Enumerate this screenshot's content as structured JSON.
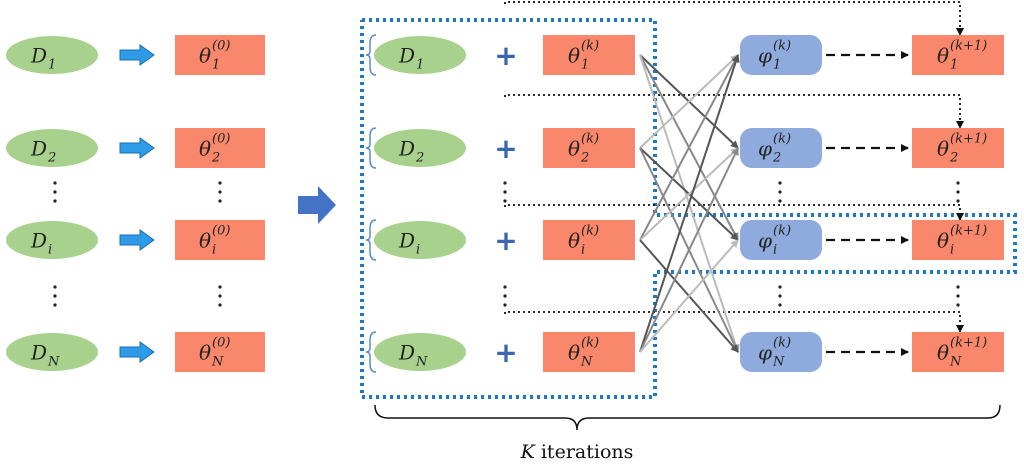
{
  "left": {
    "data": [
      {
        "base": "D",
        "sub": "1"
      },
      {
        "base": "D",
        "sub": "2"
      },
      {
        "base": "D",
        "sub": "i"
      },
      {
        "base": "D",
        "sub": "N"
      }
    ],
    "params": [
      {
        "base": "θ",
        "sub": "1",
        "sup": "(0)"
      },
      {
        "base": "θ",
        "sub": "2",
        "sup": "(0)"
      },
      {
        "base": "θ",
        "sub": "i",
        "sup": "(0)"
      },
      {
        "base": "θ",
        "sub": "N",
        "sup": "(0)"
      }
    ]
  },
  "right": {
    "data": [
      {
        "base": "D",
        "sub": "1"
      },
      {
        "base": "D",
        "sub": "2"
      },
      {
        "base": "D",
        "sub": "i"
      },
      {
        "base": "D",
        "sub": "N"
      }
    ],
    "operator": "+",
    "params": [
      {
        "base": "θ",
        "sub": "1",
        "sup": "(k)"
      },
      {
        "base": "θ",
        "sub": "2",
        "sup": "(k)"
      },
      {
        "base": "θ",
        "sub": "i",
        "sup": "(k)"
      },
      {
        "base": "θ",
        "sub": "N",
        "sup": "(k)"
      }
    ],
    "aggregates": [
      {
        "base": "φ",
        "sub": "1",
        "sup": "(k)"
      },
      {
        "base": "φ",
        "sub": "2",
        "sup": "(k)"
      },
      {
        "base": "φ",
        "sub": "i",
        "sup": "(k)"
      },
      {
        "base": "φ",
        "sub": "N",
        "sup": "(k)"
      }
    ],
    "updates": [
      {
        "base": "θ",
        "sub": "1",
        "sup": "(k+1)"
      },
      {
        "base": "θ",
        "sub": "2",
        "sup": "(k+1)"
      },
      {
        "base": "θ",
        "sub": "i",
        "sup": "(k+1)"
      },
      {
        "base": "θ",
        "sub": "N",
        "sup": "(k+1)"
      }
    ]
  },
  "caption": {
    "variable": "K",
    "text": "iterations"
  }
}
